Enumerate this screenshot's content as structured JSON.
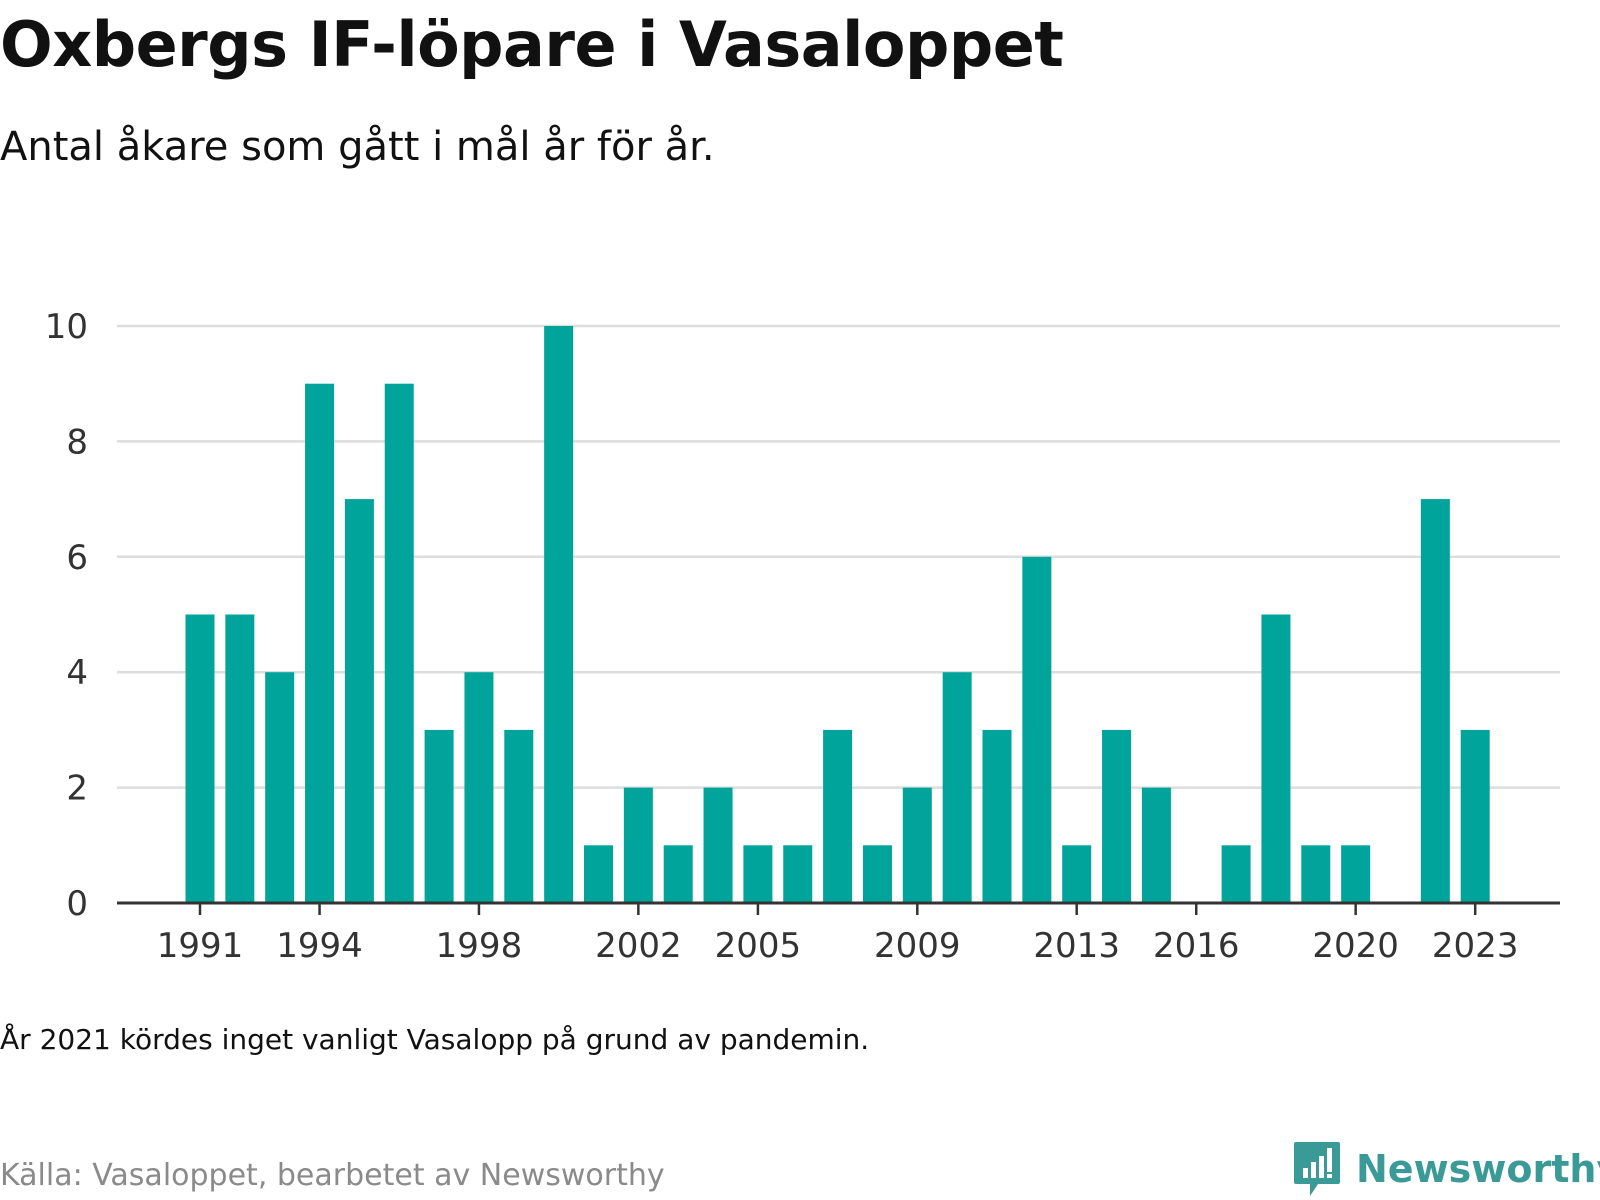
{
  "header": {
    "title": "Oxbergs IF-löpare i Vasaloppet",
    "subtitle": "Antal åkare som gått i mål år för år."
  },
  "footer": {
    "note": "År 2021 kördes inget vanligt Vasalopp på grund av pandemin.",
    "source": "Källa: Vasaloppet, bearbetet av Newsworthy",
    "brand": "Newsworthy",
    "brand_icon": "bar-chart-speech-bubble-icon"
  },
  "colors": {
    "bar": "#00a49a",
    "grid": "#dddddd",
    "axis": "#333333",
    "brand": "#3a9a98"
  },
  "chart_data": {
    "type": "bar",
    "x": [
      1991,
      1992,
      1993,
      1994,
      1995,
      1996,
      1997,
      1998,
      1999,
      2000,
      2001,
      2002,
      2003,
      2004,
      2005,
      2006,
      2007,
      2008,
      2009,
      2010,
      2011,
      2012,
      2013,
      2014,
      2015,
      2016,
      2017,
      2018,
      2019,
      2020,
      2021,
      2022,
      2023
    ],
    "values": [
      5,
      5,
      4,
      9,
      7,
      9,
      3,
      4,
      3,
      10,
      1,
      2,
      1,
      2,
      1,
      1,
      3,
      1,
      2,
      4,
      3,
      6,
      1,
      3,
      2,
      0,
      1,
      5,
      1,
      1,
      0,
      7,
      3
    ],
    "xticks": [
      1991,
      1994,
      1998,
      2002,
      2005,
      2009,
      2013,
      2016,
      2020,
      2023
    ],
    "yticks": [
      0,
      2,
      4,
      6,
      8,
      10
    ],
    "ylim": [
      0,
      10
    ],
    "grid": true,
    "legend": "none"
  }
}
